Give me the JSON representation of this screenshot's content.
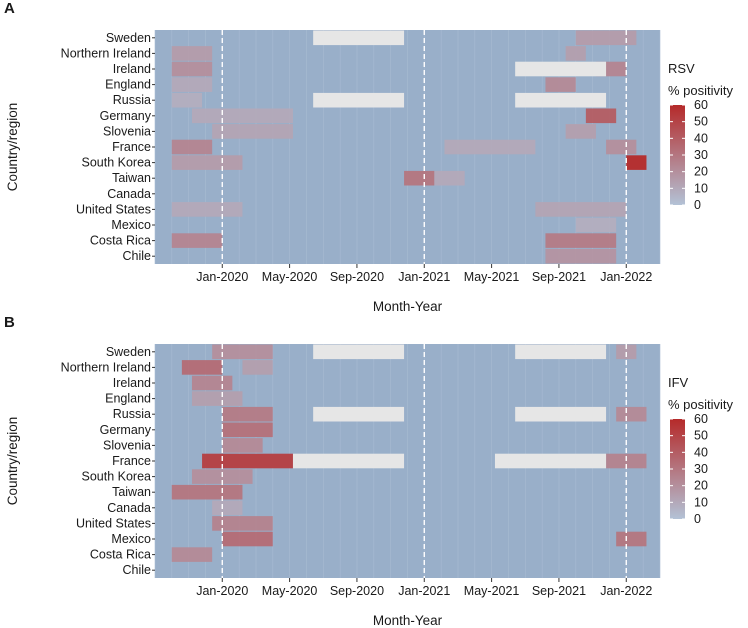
{
  "chart_data": [
    {
      "type": "heatmap",
      "panel_label": "A",
      "legend_title_line1": "RSV",
      "legend_title_line2": "% positivity",
      "xlabel": "Month-Year",
      "ylabel": "Country/region",
      "x_ticks": [
        "Jan-2020",
        "May-2020",
        "Sep-2020",
        "Jan-2021",
        "May-2021",
        "Sep-2021",
        "Jan-2022"
      ],
      "color_scale": {
        "min": 0,
        "max": 60,
        "ticks": [
          0,
          10,
          20,
          30,
          40,
          50,
          60
        ],
        "low_color": "#b3c2d6",
        "high_color": "#b52a2a",
        "base_color": "#99afc9",
        "missing_color": "#e6e6e6"
      },
      "vlines_at": [
        "Jan-2020",
        "Jan-2021",
        "Jan-2022"
      ],
      "rows": [
        {
          "name": "Sweden",
          "hot": [
            [
              2021.75,
              2022.05,
              15
            ]
          ],
          "missing": [
            [
              2020.45,
              2020.9
            ]
          ]
        },
        {
          "name": "Northern Ireland",
          "hot": [
            [
              2019.75,
              2019.95,
              15
            ],
            [
              2021.7,
              2021.8,
              14
            ]
          ],
          "missing": []
        },
        {
          "name": "Ireland",
          "hot": [
            [
              2019.75,
              2019.95,
              20
            ],
            [
              2021.85,
              2022.0,
              24
            ]
          ],
          "missing": [
            [
              2021.45,
              2021.9
            ]
          ]
        },
        {
          "name": "England",
          "hot": [
            [
              2019.75,
              2019.95,
              10
            ],
            [
              2021.6,
              2021.75,
              22
            ]
          ],
          "missing": []
        },
        {
          "name": "Russia",
          "hot": [
            [
              2019.75,
              2019.9,
              8
            ]
          ],
          "missing": [
            [
              2020.45,
              2020.9
            ],
            [
              2021.45,
              2021.9
            ]
          ]
        },
        {
          "name": "Germany",
          "hot": [
            [
              2019.85,
              2020.35,
              10
            ],
            [
              2021.8,
              2021.95,
              40
            ]
          ],
          "missing": []
        },
        {
          "name": "Slovenia",
          "hot": [
            [
              2019.95,
              2020.35,
              12
            ],
            [
              2021.7,
              2021.85,
              14
            ]
          ],
          "missing": []
        },
        {
          "name": "France",
          "hot": [
            [
              2019.75,
              2019.95,
              24
            ],
            [
              2021.1,
              2021.55,
              10
            ],
            [
              2021.9,
              2022.05,
              20
            ]
          ],
          "missing": []
        },
        {
          "name": "South Korea",
          "hot": [
            [
              2019.75,
              2020.1,
              15
            ],
            [
              2022.0,
              2022.1,
              60
            ]
          ],
          "missing": []
        },
        {
          "name": "Taiwan",
          "hot": [
            [
              2020.9,
              2021.05,
              30
            ],
            [
              2021.05,
              2021.2,
              10
            ]
          ],
          "missing": []
        },
        {
          "name": "Canada",
          "hot": [],
          "missing": []
        },
        {
          "name": "United States",
          "hot": [
            [
              2019.75,
              2020.1,
              10
            ],
            [
              2021.55,
              2022.0,
              12
            ]
          ],
          "missing": []
        },
        {
          "name": "Mexico",
          "hot": [
            [
              2021.75,
              2021.95,
              8
            ]
          ],
          "missing": []
        },
        {
          "name": "Costa Rica",
          "hot": [
            [
              2019.75,
              2020.0,
              24
            ],
            [
              2021.6,
              2021.95,
              28
            ]
          ],
          "missing": []
        },
        {
          "name": "Chile",
          "hot": [
            [
              2021.6,
              2021.95,
              18
            ]
          ],
          "missing": []
        }
      ]
    },
    {
      "type": "heatmap",
      "panel_label": "B",
      "legend_title_line1": "IFV",
      "legend_title_line2": "% positivity",
      "xlabel": "Month-Year",
      "ylabel": "Country/region",
      "x_ticks": [
        "Jan-2020",
        "May-2020",
        "Sep-2020",
        "Jan-2021",
        "May-2021",
        "Sep-2021",
        "Jan-2022"
      ],
      "color_scale": {
        "min": 0,
        "max": 60,
        "ticks": [
          0,
          10,
          20,
          30,
          40,
          50,
          60
        ],
        "low_color": "#b3c2d6",
        "high_color": "#b52a2a",
        "base_color": "#99afc9",
        "missing_color": "#e6e6e6"
      },
      "vlines_at": [
        "Jan-2020",
        "Jan-2021",
        "Jan-2022"
      ],
      "rows": [
        {
          "name": "Sweden",
          "hot": [
            [
              2019.95,
              2020.25,
              20
            ],
            [
              2021.95,
              2022.05,
              15
            ]
          ],
          "missing": [
            [
              2020.45,
              2020.9
            ],
            [
              2021.45,
              2021.9
            ]
          ]
        },
        {
          "name": "Northern Ireland",
          "hot": [
            [
              2019.8,
              2020.0,
              34
            ],
            [
              2020.1,
              2020.25,
              14
            ]
          ],
          "missing": []
        },
        {
          "name": "Ireland",
          "hot": [
            [
              2019.85,
              2020.05,
              24
            ]
          ],
          "missing": []
        },
        {
          "name": "England",
          "hot": [
            [
              2019.85,
              2020.1,
              14
            ]
          ],
          "missing": []
        },
        {
          "name": "Russia",
          "hot": [
            [
              2020.0,
              2020.25,
              28
            ],
            [
              2021.95,
              2022.1,
              22
            ]
          ],
          "missing": [
            [
              2020.45,
              2020.9
            ],
            [
              2021.45,
              2021.9
            ]
          ]
        },
        {
          "name": "Germany",
          "hot": [
            [
              2020.0,
              2020.25,
              32
            ]
          ],
          "missing": []
        },
        {
          "name": "Slovenia",
          "hot": [
            [
              2020.0,
              2020.2,
              22
            ]
          ],
          "missing": []
        },
        {
          "name": "France",
          "hot": [
            [
              2019.9,
              2020.35,
              52
            ],
            [
              2021.9,
              2022.1,
              25
            ]
          ],
          "missing": [
            [
              2020.35,
              2020.9
            ],
            [
              2021.35,
              2021.9
            ]
          ]
        },
        {
          "name": "South Korea",
          "hot": [
            [
              2019.85,
              2020.15,
              20
            ]
          ],
          "missing": []
        },
        {
          "name": "Taiwan",
          "hot": [
            [
              2019.75,
              2020.1,
              30
            ]
          ],
          "missing": []
        },
        {
          "name": "Canada",
          "hot": [
            [
              2019.95,
              2020.1,
              10
            ]
          ],
          "missing": []
        },
        {
          "name": "United States",
          "hot": [
            [
              2019.95,
              2020.25,
              25
            ]
          ],
          "missing": []
        },
        {
          "name": "Mexico",
          "hot": [
            [
              2020.0,
              2020.25,
              34
            ],
            [
              2021.95,
              2022.1,
              30
            ]
          ],
          "missing": []
        },
        {
          "name": "Costa Rica",
          "hot": [
            [
              2019.75,
              2019.95,
              22
            ]
          ],
          "missing": []
        },
        {
          "name": "Chile",
          "hot": [],
          "missing": []
        }
      ]
    }
  ]
}
